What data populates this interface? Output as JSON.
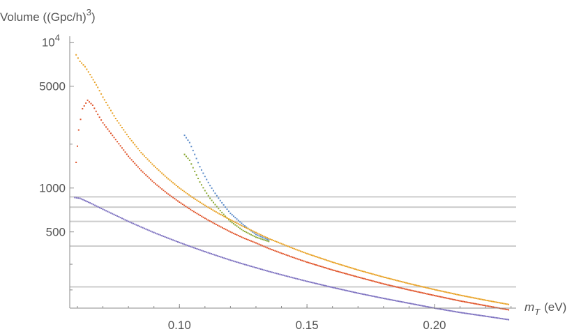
{
  "chart_data": {
    "type": "scatter",
    "title": "",
    "xlabel_main": "m",
    "xlabel_sub": "T",
    "xlabel_unit": "(eV)",
    "ylabel_main": "Volume ((Gpc/h)",
    "ylabel_sup": "3",
    "ylabel_close": ")",
    "xlim": [
      0.057,
      0.232
    ],
    "ylim": [
      150,
      11000
    ],
    "yscale": "log",
    "x_ticks": [
      {
        "value": 0.1,
        "label": "0.10"
      },
      {
        "value": 0.15,
        "label": "0.15"
      },
      {
        "value": 0.2,
        "label": "0.20"
      }
    ],
    "y_ticks": [
      {
        "value": 10000,
        "label": "10",
        "sup": "4"
      },
      {
        "value": 5000,
        "label": "5000",
        "sup": ""
      },
      {
        "value": 1000,
        "label": "1000",
        "sup": ""
      },
      {
        "value": 500,
        "label": "500",
        "sup": ""
      }
    ],
    "y_minor_ticks": [
      2000,
      300,
      200
    ],
    "horizontal_lines": [
      870,
      740,
      590,
      400,
      210
    ],
    "colors": {
      "axis": "#888888",
      "hline": "#cccccc"
    },
    "series": [
      {
        "color": "#5b8bc9",
        "points": [
          [
            0.102,
            2300
          ],
          [
            0.104,
            2050
          ],
          [
            0.106,
            1700
          ],
          [
            0.108,
            1400
          ],
          [
            0.11,
            1200
          ],
          [
            0.112,
            1040
          ],
          [
            0.114,
            920
          ],
          [
            0.116,
            820
          ],
          [
            0.118,
            740
          ],
          [
            0.12,
            670
          ],
          [
            0.125,
            560
          ],
          [
            0.13,
            480
          ],
          [
            0.135,
            440
          ]
        ]
      },
      {
        "color": "#8aa834",
        "points": [
          [
            0.102,
            1700
          ],
          [
            0.104,
            1550
          ],
          [
            0.106,
            1300
          ],
          [
            0.108,
            1100
          ],
          [
            0.11,
            960
          ],
          [
            0.112,
            850
          ],
          [
            0.114,
            770
          ],
          [
            0.116,
            700
          ],
          [
            0.118,
            640
          ],
          [
            0.12,
            590
          ],
          [
            0.125,
            510
          ],
          [
            0.13,
            460
          ],
          [
            0.135,
            430
          ]
        ]
      },
      {
        "color": "#e8a124",
        "points": [
          [
            0.0595,
            8200
          ],
          [
            0.061,
            7400
          ],
          [
            0.063,
            6800
          ],
          [
            0.065,
            6000
          ],
          [
            0.068,
            4900
          ],
          [
            0.07,
            4200
          ],
          [
            0.075,
            3000
          ],
          [
            0.08,
            2250
          ],
          [
            0.085,
            1750
          ],
          [
            0.09,
            1420
          ],
          [
            0.095,
            1180
          ],
          [
            0.1,
            1000
          ],
          [
            0.105,
            865
          ],
          [
            0.11,
            760
          ],
          [
            0.115,
            675
          ],
          [
            0.12,
            605
          ],
          [
            0.125,
            545
          ],
          [
            0.13,
            495
          ],
          [
            0.135,
            450
          ],
          [
            0.14,
            415
          ],
          [
            0.145,
            383
          ],
          [
            0.15,
            355
          ],
          [
            0.16,
            310
          ],
          [
            0.17,
            274
          ],
          [
            0.18,
            245
          ],
          [
            0.19,
            221
          ],
          [
            0.2,
            201
          ],
          [
            0.21,
            184
          ],
          [
            0.22,
            170
          ],
          [
            0.229,
            159
          ]
        ]
      },
      {
        "color": "#e0542a",
        "points": [
          [
            0.0595,
            1500
          ],
          [
            0.0605,
            2500
          ],
          [
            0.062,
            3500
          ],
          [
            0.064,
            4000
          ],
          [
            0.066,
            3700
          ],
          [
            0.068,
            3200
          ],
          [
            0.07,
            2800
          ],
          [
            0.075,
            2150
          ],
          [
            0.08,
            1650
          ],
          [
            0.085,
            1320
          ],
          [
            0.09,
            1090
          ],
          [
            0.095,
            925
          ],
          [
            0.1,
            800
          ],
          [
            0.105,
            700
          ],
          [
            0.11,
            620
          ],
          [
            0.115,
            555
          ],
          [
            0.12,
            500
          ],
          [
            0.125,
            455
          ],
          [
            0.13,
            420
          ],
          [
            0.135,
            385
          ],
          [
            0.14,
            357
          ],
          [
            0.145,
            332
          ],
          [
            0.15,
            310
          ],
          [
            0.16,
            274
          ],
          [
            0.17,
            245
          ],
          [
            0.18,
            220
          ],
          [
            0.19,
            200
          ],
          [
            0.2,
            183
          ],
          [
            0.21,
            168
          ],
          [
            0.22,
            156
          ],
          [
            0.229,
            146
          ]
        ]
      },
      {
        "color": "#7b6fbf",
        "points": [
          [
            0.059,
            860
          ],
          [
            0.061,
            850
          ],
          [
            0.065,
            790
          ],
          [
            0.07,
            715
          ],
          [
            0.075,
            650
          ],
          [
            0.08,
            590
          ],
          [
            0.085,
            540
          ],
          [
            0.09,
            495
          ],
          [
            0.095,
            457
          ],
          [
            0.1,
            423
          ],
          [
            0.105,
            393
          ],
          [
            0.11,
            366
          ],
          [
            0.115,
            342
          ],
          [
            0.12,
            320
          ],
          [
            0.125,
            301
          ],
          [
            0.13,
            284
          ],
          [
            0.135,
            268
          ],
          [
            0.14,
            254
          ],
          [
            0.145,
            241
          ],
          [
            0.15,
            229
          ],
          [
            0.16,
            208
          ],
          [
            0.17,
            190
          ],
          [
            0.18,
            175
          ],
          [
            0.19,
            162
          ],
          [
            0.2,
            150
          ],
          [
            0.21,
            140
          ],
          [
            0.22,
            132
          ],
          [
            0.229,
            125
          ]
        ]
      }
    ]
  }
}
